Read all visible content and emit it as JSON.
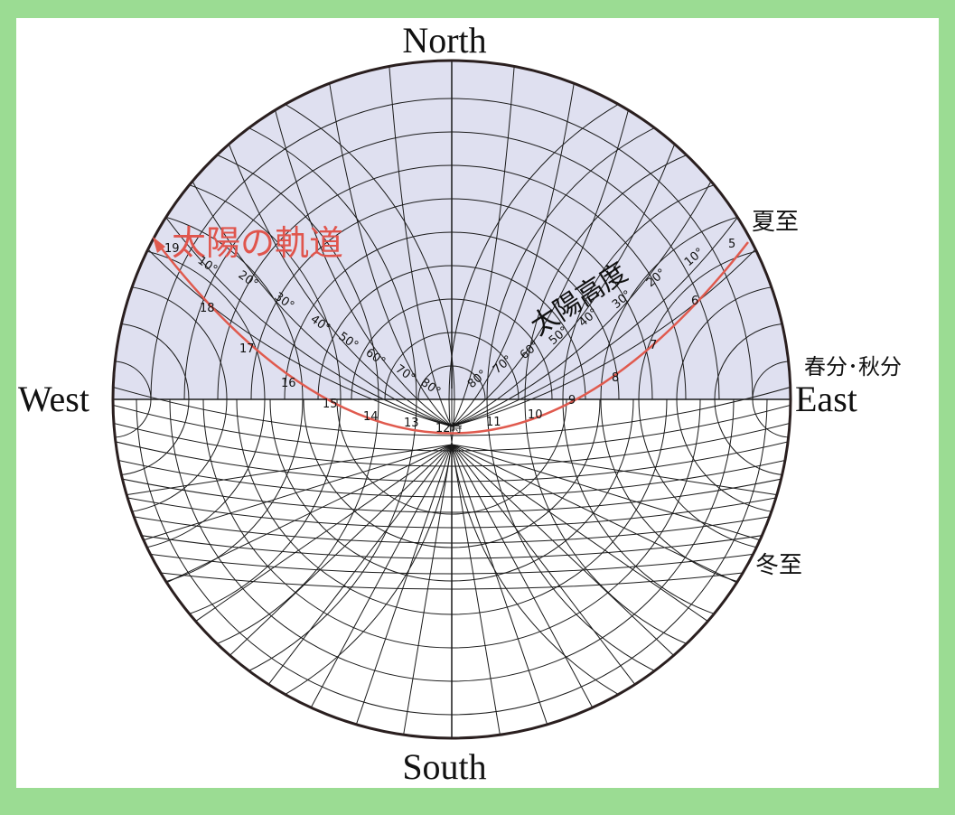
{
  "directions": {
    "north": "North",
    "south": "South",
    "east": "East",
    "west": "West"
  },
  "labels": {
    "sun_path": "太陽の軌道",
    "solar_altitude": "太陽高度",
    "summer_solstice": "夏至",
    "equinox": "春分･秋分",
    "winter_solstice": "冬至"
  },
  "altitude_labels": [
    "10°",
    "20°",
    "30°",
    "40°",
    "50°",
    "60°",
    "70°",
    "80°"
  ],
  "hour_labels": [
    "5",
    "6",
    "7",
    "8",
    "9",
    "10",
    "11",
    "12時",
    "13",
    "14",
    "15",
    "16",
    "17",
    "18",
    "19"
  ],
  "colors": {
    "background": "#9bdc93",
    "sky": "#dfe0f0",
    "sun_path": "#e05a4e",
    "sun_path_text": "#e0554d",
    "line": "#1a1a1a"
  }
}
